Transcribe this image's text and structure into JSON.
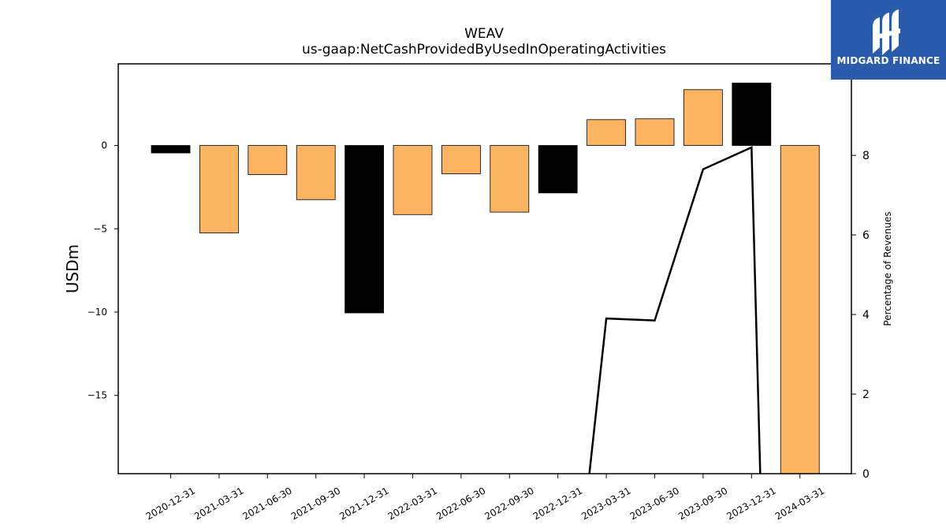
{
  "chart_data": {
    "type": "bar",
    "title": "WEAV",
    "subtitle": "us-gaap:NetCashProvidedByUsedInOperatingActivities",
    "ylabel": "USDm",
    "y2label": "Percentage of Revenues",
    "categories": [
      "2020-12-31",
      "2021-03-31",
      "2021-06-30",
      "2021-09-30",
      "2021-12-31",
      "2022-03-31",
      "2022-06-30",
      "2022-09-30",
      "2022-12-31",
      "2023-03-31",
      "2023-06-30",
      "2023-09-30",
      "2023-12-31",
      "2024-03-31"
    ],
    "values": [
      -0.45,
      -5.25,
      -1.75,
      -3.25,
      -10.05,
      -4.15,
      -1.7,
      -4.0,
      -2.85,
      1.55,
      1.6,
      3.35,
      3.75,
      -19.9
    ],
    "bar_colors": [
      "#000000",
      "#fdb462",
      "#fdb462",
      "#fdb462",
      "#000000",
      "#fdb462",
      "#fdb462",
      "#fdb462",
      "#000000",
      "#fdb462",
      "#fdb462",
      "#fdb462",
      "#000000",
      "#fdb462"
    ],
    "ylim": [
      -19.7,
      4.9
    ],
    "yticks": [
      0,
      -5,
      -10,
      -15
    ],
    "line": {
      "points": [
        {
          "x": 8.65,
          "y": 0
        },
        {
          "x": 9.0,
          "y": 3.9
        },
        {
          "x": 10.0,
          "y": 3.85
        },
        {
          "x": 11.0,
          "y": 7.65
        },
        {
          "x": 12.0,
          "y": 8.2
        },
        {
          "x": 12.18,
          "y": 0
        }
      ],
      "color": "#000000"
    },
    "y2lim": [
      0,
      10.3
    ],
    "y2ticks": [
      0,
      2,
      4,
      6,
      8,
      10
    ]
  },
  "logo": {
    "text": "MIDGARD FINANCE",
    "background": "#2b5cab"
  }
}
